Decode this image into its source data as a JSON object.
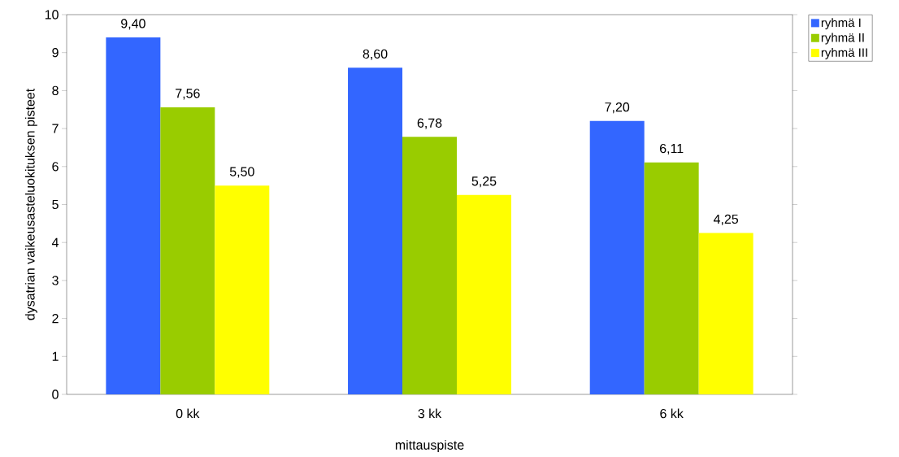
{
  "chart_data": {
    "type": "bar",
    "xlabel": "mittauspiste",
    "ylabel": "dysatrian vaikeusasteluokituksen pisteet",
    "categories": [
      "0 kk",
      "3 kk",
      "6 kk"
    ],
    "series": [
      {
        "name": "ryhmä I",
        "color": "#3366ff",
        "values": [
          9.4,
          8.6,
          7.2
        ],
        "value_labels": [
          "9,40",
          "8,60",
          "7,20"
        ]
      },
      {
        "name": "ryhmä II",
        "color": "#99cc00",
        "values": [
          7.56,
          6.78,
          6.11
        ],
        "value_labels": [
          "7,56",
          "6,78",
          "6,11"
        ]
      },
      {
        "name": "ryhmä III",
        "color": "#ffff00",
        "values": [
          5.5,
          5.25,
          4.25
        ],
        "value_labels": [
          "5,50",
          "5,25",
          "4,25"
        ]
      }
    ],
    "ylim": [
      0,
      10
    ],
    "yticks": [
      0,
      1,
      2,
      3,
      4,
      5,
      6,
      7,
      8,
      9,
      10
    ],
    "grid": false,
    "legend": "top right"
  }
}
